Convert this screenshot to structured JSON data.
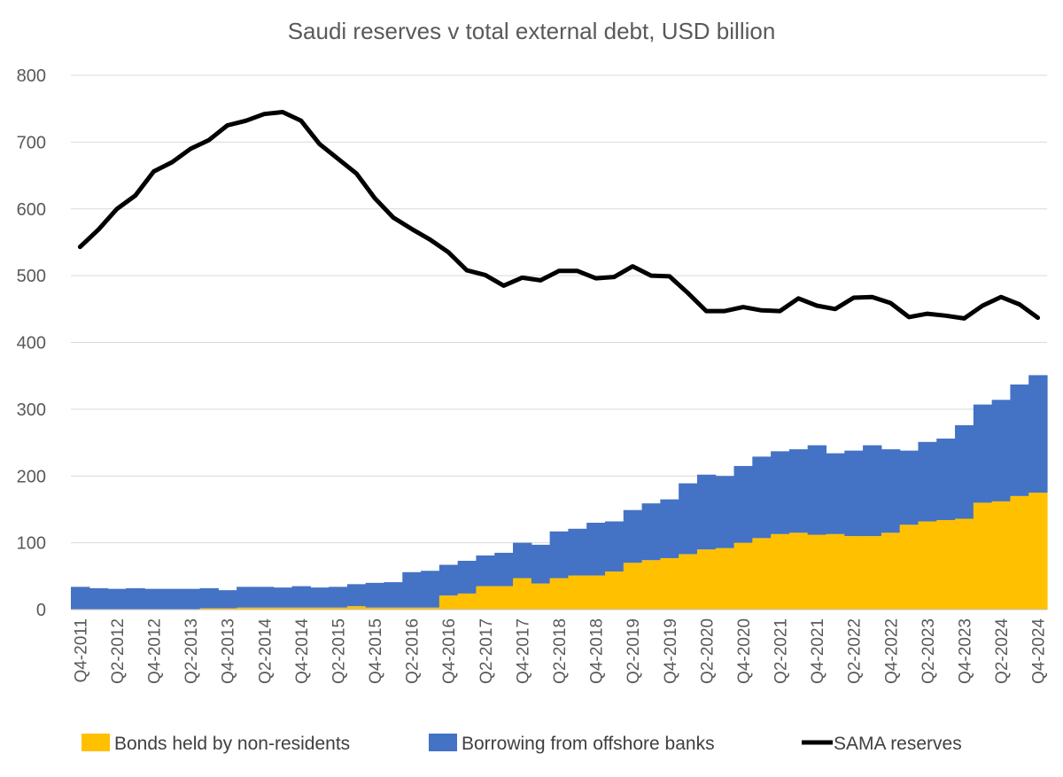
{
  "chart_data": {
    "type": "area",
    "title": "Saudi reserves v total external debt, USD billion",
    "xlabel": "",
    "ylabel": "",
    "ylim": [
      0,
      800
    ],
    "yticks": [
      0,
      100,
      200,
      300,
      400,
      500,
      600,
      700,
      800
    ],
    "grid": true,
    "legend_position": "bottom",
    "x": [
      "Q4-2011",
      "Q1-2012",
      "Q2-2012",
      "Q3-2012",
      "Q4-2012",
      "Q1-2013",
      "Q2-2013",
      "Q3-2013",
      "Q4-2013",
      "Q1-2014",
      "Q2-2014",
      "Q3-2014",
      "Q4-2014",
      "Q1-2015",
      "Q2-2015",
      "Q3-2015",
      "Q4-2015",
      "Q1-2016",
      "Q2-2016",
      "Q3-2016",
      "Q4-2016",
      "Q1-2017",
      "Q2-2017",
      "Q3-2017",
      "Q4-2017",
      "Q1-2018",
      "Q2-2018",
      "Q3-2018",
      "Q4-2018",
      "Q1-2019",
      "Q2-2019",
      "Q3-2019",
      "Q4-2019",
      "Q1-2020",
      "Q2-2020",
      "Q3-2020",
      "Q4-2020",
      "Q1-2021",
      "Q2-2021",
      "Q3-2021",
      "Q4-2021",
      "Q1-2022",
      "Q2-2022",
      "Q3-2022",
      "Q4-2022",
      "Q1-2023",
      "Q2-2023",
      "Q3-2023",
      "Q4-2023",
      "Q1-2024",
      "Q2-2024",
      "Q3-2024",
      "Q4-2024"
    ],
    "tick_labels": [
      "Q4-2011",
      "Q2-2012",
      "Q4-2012",
      "Q2-2013",
      "Q4-2013",
      "Q2-2014",
      "Q4-2014",
      "Q2-2015",
      "Q4-2015",
      "Q2-2016",
      "Q4-2016",
      "Q2-2017",
      "Q4-2017",
      "Q2-2018",
      "Q4-2018",
      "Q2-2019",
      "Q4-2019",
      "Q2-2020",
      "Q4-2020",
      "Q2-2021",
      "Q4-2021",
      "Q2-2022",
      "Q4-2022",
      "Q2-2023",
      "Q4-2023",
      "Q2-2024",
      "Q4-2024"
    ],
    "series": [
      {
        "name": "Bonds held by non-residents",
        "type": "stacked-area",
        "color": "#FFC000",
        "values": [
          0,
          0,
          0,
          0,
          0,
          0,
          0,
          2,
          2,
          3,
          3,
          3,
          3,
          3,
          3,
          5,
          3,
          3,
          3,
          3,
          21,
          24,
          35,
          35,
          47,
          39,
          47,
          51,
          51,
          57,
          70,
          74,
          77,
          83,
          90,
          92,
          100,
          107,
          113,
          115,
          112,
          113,
          110,
          110,
          115,
          127,
          132,
          134,
          136,
          160,
          162,
          170,
          175
        ]
      },
      {
        "name": "Borrowing from offshore banks",
        "type": "stacked-area",
        "color": "#4472C4",
        "values": [
          34,
          32,
          31,
          32,
          31,
          31,
          31,
          30,
          27,
          31,
          31,
          30,
          32,
          30,
          31,
          33,
          37,
          38,
          53,
          55,
          46,
          49,
          46,
          50,
          53,
          58,
          70,
          70,
          79,
          75,
          79,
          85,
          88,
          106,
          112,
          108,
          115,
          122,
          124,
          125,
          134,
          121,
          128,
          136,
          125,
          111,
          119,
          122,
          140,
          147,
          152,
          167,
          176
        ]
      },
      {
        "name": "SAMA reserves",
        "type": "line",
        "color": "#000000",
        "values": [
          543,
          569,
          600,
          620,
          656,
          670,
          690,
          703,
          725,
          732,
          742,
          745,
          732,
          697,
          675,
          653,
          616,
          587,
          570,
          554,
          535,
          508,
          501,
          485,
          497,
          493,
          507,
          507,
          496,
          498,
          514,
          500,
          499,
          474,
          447,
          447,
          453,
          448,
          447,
          466,
          455,
          450,
          467,
          468,
          459,
          438,
          443,
          440,
          436,
          455,
          468,
          457,
          437
        ]
      }
    ]
  }
}
